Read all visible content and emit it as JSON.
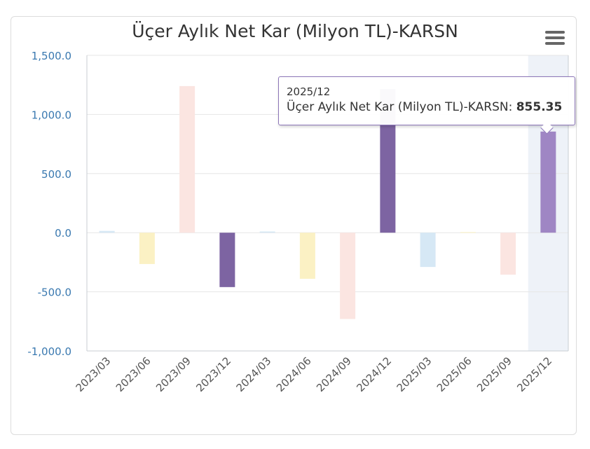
{
  "chart_data": {
    "type": "bar",
    "title": "Üçer Aylık Net Kar (Milyon TL)-KARSN",
    "categories": [
      "2023/03",
      "2023/06",
      "2023/09",
      "2023/12",
      "2024/03",
      "2024/06",
      "2024/09",
      "2024/12",
      "2025/03",
      "2025/06",
      "2025/09",
      "2025/12"
    ],
    "values": [
      15,
      -265,
      1240,
      -460,
      10,
      -390,
      -730,
      1215,
      -290,
      5,
      -355,
      855.35
    ],
    "colors": [
      "#d6e8f5",
      "#fbf1c4",
      "#fbe5e1",
      "#7d64a2",
      "#d6e8f5",
      "#fbf1c4",
      "#fbe5e1",
      "#7d64a2",
      "#d6e8f5",
      "#fbf1c4",
      "#fbe5e1",
      "#9f86c4"
    ],
    "ylim": [
      -1000,
      1500
    ],
    "yticks": [
      1500,
      1000,
      500,
      0,
      -500,
      -1000
    ],
    "ytick_labels": [
      "1,500.0",
      "1,000.0",
      "500.0",
      "0.0",
      "-500.0",
      "-1,000.0"
    ],
    "grid": true,
    "highlighted_category": "2025/12"
  },
  "tooltip": {
    "date": "2025/12",
    "series_label": "Üçer Aylık Net Kar (Milyon TL)-KARSN: ",
    "value": "855.35"
  }
}
